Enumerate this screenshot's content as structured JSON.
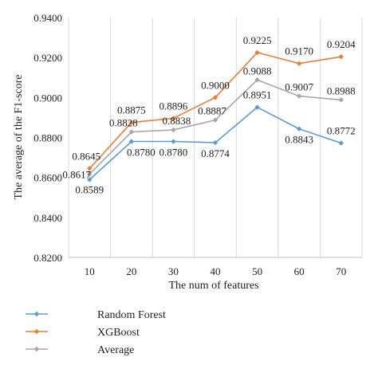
{
  "chart_data": {
    "type": "line",
    "xlabel": "The num of features",
    "ylabel": "The average of the F1-score",
    "x": [
      10,
      20,
      30,
      40,
      50,
      60,
      70
    ],
    "ylim": [
      0.82,
      0.94
    ],
    "yticks": [
      "0.8200",
      "0.8400",
      "0.8600",
      "0.8800",
      "0.9000",
      "0.9200",
      "0.9400"
    ],
    "grid": "vertical",
    "legend_position": "bottom-left",
    "series": [
      {
        "name": "Random Forest",
        "color": "#5b9bd5",
        "values": [
          0.8589,
          0.878,
          0.878,
          0.8774,
          0.8951,
          0.8843,
          0.8772
        ],
        "labels": [
          "0.8589",
          "0.8780",
          "0.8780",
          "0.8774",
          "0.8951",
          "0.8843",
          "0.8772"
        ]
      },
      {
        "name": "XGBoost",
        "color": "#ed7d31",
        "values": [
          0.8645,
          0.8875,
          0.8896,
          0.9,
          0.9225,
          0.917,
          0.9204
        ],
        "labels": [
          "0.8645",
          "0.8875",
          "0.8896",
          "0.9000",
          "0.9225",
          "0.9170",
          "0.9204"
        ]
      },
      {
        "name": "Average",
        "color": "#a5a5a5",
        "values": [
          0.8617,
          0.8828,
          0.8838,
          0.8887,
          0.9088,
          0.9007,
          0.8988
        ],
        "labels": [
          "0.8617",
          "0.8828",
          "0.8838",
          "0.8887",
          "0.9088",
          "0.9007",
          "0.8988"
        ]
      }
    ]
  }
}
